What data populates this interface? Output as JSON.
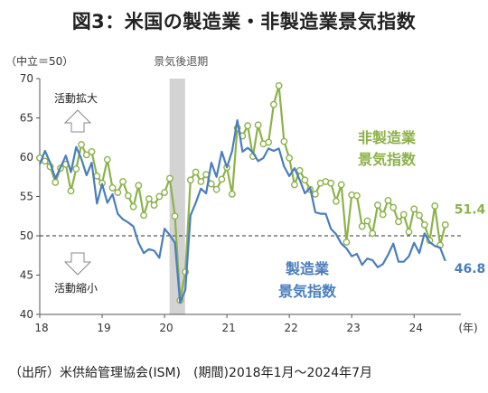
{
  "title": "図3：米国の製造業・非製造業景気指数",
  "source": "（出所）米供給管理協会(ISM)　(期間)2018年1月～2024年7月",
  "chart_data": {
    "type": "line",
    "ylabel": "（中立＝50）",
    "xunit": "(年)",
    "ylim": [
      40,
      70
    ],
    "yticks": [
      40,
      45,
      50,
      55,
      60,
      65,
      70
    ],
    "xlim": [
      2018,
      2024.75
    ],
    "xticks": [
      {
        "value": 2018,
        "label": "18"
      },
      {
        "value": 2019,
        "label": "19"
      },
      {
        "value": 2020,
        "label": "20"
      },
      {
        "value": 2021,
        "label": "21"
      },
      {
        "value": 2022,
        "label": "22"
      },
      {
        "value": 2023,
        "label": "23"
      },
      {
        "value": 2024,
        "label": "24"
      }
    ],
    "neutral_line": 50,
    "recession": {
      "label": "景気後退期",
      "start": 2020.08,
      "end": 2020.33
    },
    "annotations": {
      "expansion": "活動拡大",
      "contraction": "活動縮小"
    },
    "series": [
      {
        "name": "非製造業景気指数",
        "label_line1": "非製造業",
        "label_line2": "景気指数",
        "color": "#8db24b",
        "marker": "circle",
        "last_label": "51.4",
        "start": "2018-01",
        "values": [
          59.9,
          59.5,
          58.8,
          56.8,
          58.6,
          59.1,
          55.7,
          58.5,
          61.6,
          60.3,
          60.7,
          57.6,
          56.7,
          59.7,
          56.1,
          55.5,
          56.9,
          55.1,
          53.7,
          56.4,
          52.6,
          54.7,
          53.9,
          55.0,
          55.5,
          57.3,
          52.5,
          41.8,
          45.4,
          57.1,
          58.1,
          56.9,
          57.8,
          56.6,
          55.9,
          57.2,
          58.7,
          55.3,
          63.7,
          62.7,
          64.0,
          60.1,
          64.1,
          61.7,
          61.9,
          66.7,
          69.1,
          62.0,
          59.9,
          56.5,
          58.3,
          57.1,
          55.9,
          55.3,
          56.7,
          56.9,
          56.7,
          54.4,
          56.5,
          49.2,
          55.2,
          55.1,
          51.2,
          51.9,
          50.3,
          53.9,
          52.7,
          54.5,
          53.6,
          51.8,
          52.7,
          50.5,
          53.4,
          52.6,
          51.4,
          49.4,
          53.8,
          48.8,
          51.4
        ]
      },
      {
        "name": "製造業景気指数",
        "label_line1": "製造業",
        "label_line2": "景気指数",
        "color": "#4a7ebb",
        "marker": "none",
        "last_label": "46.8",
        "start": "2018-01",
        "values": [
          59.1,
          60.8,
          59.3,
          57.3,
          58.7,
          60.2,
          58.1,
          61.3,
          59.8,
          57.7,
          59.3,
          54.1,
          56.6,
          54.2,
          55.3,
          52.8,
          52.1,
          51.7,
          51.2,
          49.1,
          47.8,
          48.3,
          48.1,
          47.2,
          50.9,
          50.1,
          49.1,
          41.5,
          43.1,
          52.6,
          54.2,
          56.0,
          55.4,
          59.3,
          57.5,
          60.7,
          58.7,
          60.8,
          64.7,
          60.7,
          61.2,
          60.6,
          59.5,
          59.9,
          61.1,
          60.8,
          61.1,
          58.8,
          57.6,
          58.6,
          57.1,
          55.4,
          56.1,
          53.0,
          52.8,
          52.8,
          50.9,
          50.2,
          49.0,
          48.4,
          47.4,
          47.7,
          46.3,
          47.1,
          46.9,
          46.0,
          46.4,
          47.6,
          49.0,
          46.7,
          46.7,
          47.4,
          49.1,
          47.8,
          50.3,
          49.2,
          48.7,
          48.5,
          46.8
        ]
      }
    ]
  }
}
